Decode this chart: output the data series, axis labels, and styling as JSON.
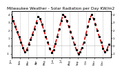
{
  "title": "Milwaukee Weather - Solar Radiation per Day KW/m2",
  "bg_color": "#ffffff",
  "line_color": "#cc0000",
  "marker_color": "#000000",
  "grid_color": "#999999",
  "ylim": [
    -1.5,
    4.5
  ],
  "xlim": [
    0,
    52
  ],
  "title_fontsize": 4.2,
  "tick_fontsize": 2.8,
  "values": [
    3.8,
    3.2,
    2.5,
    1.8,
    1.2,
    0.5,
    -0.2,
    -0.8,
    -0.5,
    0.2,
    0.8,
    1.5,
    2.2,
    3.0,
    3.8,
    3.5,
    2.8,
    2.0,
    1.2,
    0.5,
    -0.3,
    -0.9,
    -0.5,
    0.3,
    1.2,
    2.2,
    3.2,
    4.0,
    3.8,
    3.2,
    2.5,
    1.8,
    1.0,
    0.2,
    -0.5,
    -1.0,
    -0.8,
    -0.2,
    0.5,
    1.5,
    2.5,
    3.5,
    4.0,
    3.5,
    2.8,
    2.0,
    1.2,
    0.5,
    -0.3,
    -0.8,
    -0.5,
    0.2
  ],
  "month_starts": [
    0,
    4.4,
    8.7,
    13.1,
    17.4,
    21.7,
    26.1,
    30.4,
    34.7,
    39.1,
    43.4,
    47.7
  ],
  "month_labels": [
    "Jan",
    "Feb",
    "Mar",
    "Apr",
    "May",
    "Jun",
    "Jul",
    "Aug",
    "Sep",
    "Oct",
    "Nov",
    "Dec"
  ],
  "yticks_right": [
    4,
    3,
    2,
    1,
    0,
    -1
  ],
  "yticks_left": [
    4,
    3,
    2,
    1,
    0,
    -1
  ]
}
